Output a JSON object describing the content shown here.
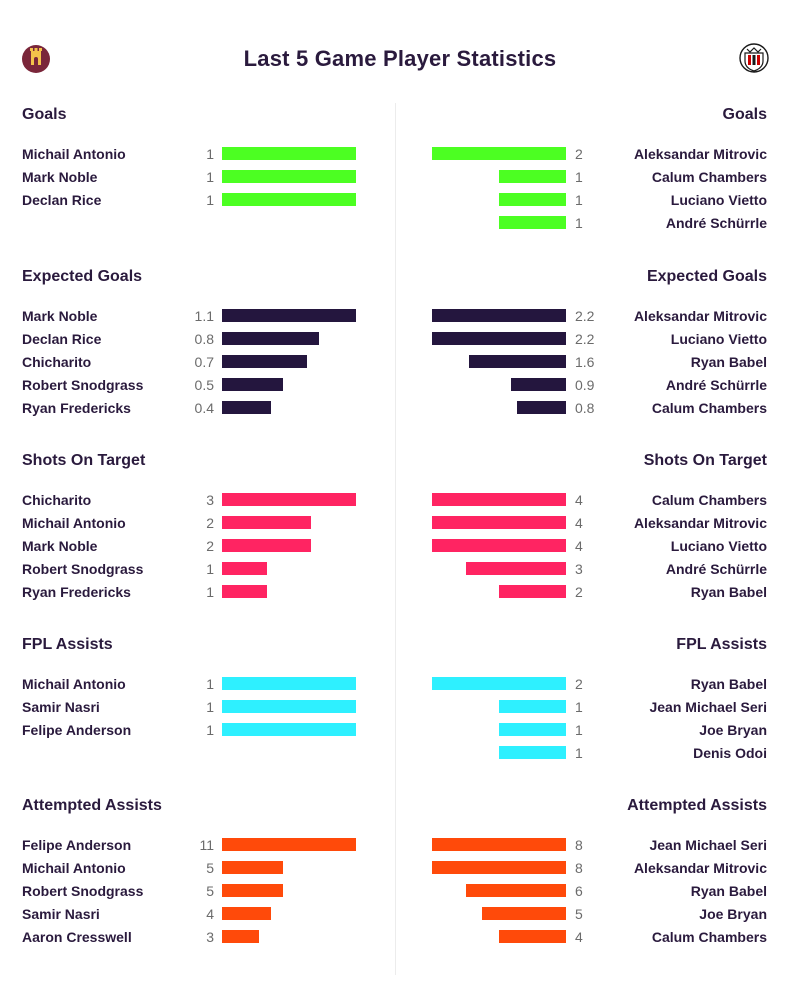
{
  "header": {
    "title": "Last 5 Game Player Statistics",
    "home_crest_icon": "west-ham-crest-icon",
    "away_crest_icon": "fulham-crest-icon"
  },
  "chart_data": [
    {
      "type": "bar",
      "title": "Goals",
      "color": "#4cff22",
      "max": 1,
      "home": {
        "players": [
          "Michail Antonio",
          "Mark Noble",
          "Declan Rice"
        ],
        "values": [
          1,
          1,
          1
        ],
        "labels": [
          "1",
          "1",
          "1"
        ]
      },
      "away": {
        "players": [
          "Aleksandar Mitrovic",
          "Calum Chambers",
          "Luciano Vietto",
          "André Schürrle"
        ],
        "values": [
          2,
          1,
          1,
          1
        ],
        "labels": [
          "2",
          "1",
          "1",
          "1"
        ]
      }
    },
    {
      "type": "bar",
      "title": "Expected Goals",
      "color": "#24163e",
      "home": {
        "players": [
          "Mark Noble",
          "Declan Rice",
          "Chicharito",
          "Robert Snodgrass",
          "Ryan Fredericks"
        ],
        "values": [
          1.1,
          0.8,
          0.7,
          0.5,
          0.4
        ],
        "labels": [
          "1.1",
          "0.8",
          "0.7",
          "0.5",
          "0.4"
        ]
      },
      "away": {
        "players": [
          "Aleksandar Mitrovic",
          "Luciano Vietto",
          "Ryan Babel",
          "André Schürrle",
          "Calum Chambers"
        ],
        "values": [
          2.2,
          2.2,
          1.6,
          0.9,
          0.8
        ],
        "labels": [
          "2.2",
          "2.2",
          "1.6",
          "0.9",
          "0.8"
        ]
      }
    },
    {
      "type": "bar",
      "title": "Shots On Target",
      "color": "#ff2462",
      "home": {
        "players": [
          "Chicharito",
          "Michail Antonio",
          "Mark Noble",
          "Robert Snodgrass",
          "Ryan Fredericks"
        ],
        "values": [
          3,
          2,
          2,
          1,
          1
        ],
        "labels": [
          "3",
          "2",
          "2",
          "1",
          "1"
        ]
      },
      "away": {
        "players": [
          "Calum Chambers",
          "Aleksandar Mitrovic",
          "Luciano Vietto",
          "André Schürrle",
          "Ryan Babel"
        ],
        "values": [
          4,
          4,
          4,
          3,
          2
        ],
        "labels": [
          "4",
          "4",
          "4",
          "3",
          "2"
        ]
      }
    },
    {
      "type": "bar",
      "title": "FPL Assists",
      "color": "#2ef0ff",
      "max": 1,
      "home": {
        "players": [
          "Michail Antonio",
          "Samir Nasri",
          "Felipe Anderson"
        ],
        "values": [
          1,
          1,
          1
        ],
        "labels": [
          "1",
          "1",
          "1"
        ]
      },
      "away": {
        "players": [
          "Ryan Babel",
          "Jean Michael Seri",
          "Joe Bryan",
          "Denis Odoi"
        ],
        "values": [
          2,
          1,
          1,
          1
        ],
        "labels": [
          "2",
          "1",
          "1",
          "1"
        ]
      }
    },
    {
      "type": "bar",
      "title": "Attempted Assists",
      "color": "#ff4a0a",
      "home": {
        "players": [
          "Felipe Anderson",
          "Michail Antonio",
          "Robert Snodgrass",
          "Samir Nasri",
          "Aaron Cresswell"
        ],
        "values": [
          11,
          5,
          5,
          4,
          3
        ],
        "labels": [
          "11",
          "5",
          "5",
          "4",
          "3"
        ]
      },
      "away": {
        "players": [
          "Jean Michael Seri",
          "Aleksandar Mitrovic",
          "Ryan Babel",
          "Joe Bryan",
          "Calum Chambers"
        ],
        "values": [
          8,
          8,
          6,
          5,
          4
        ],
        "labels": [
          "8",
          "8",
          "6",
          "5",
          "4"
        ]
      }
    }
  ]
}
